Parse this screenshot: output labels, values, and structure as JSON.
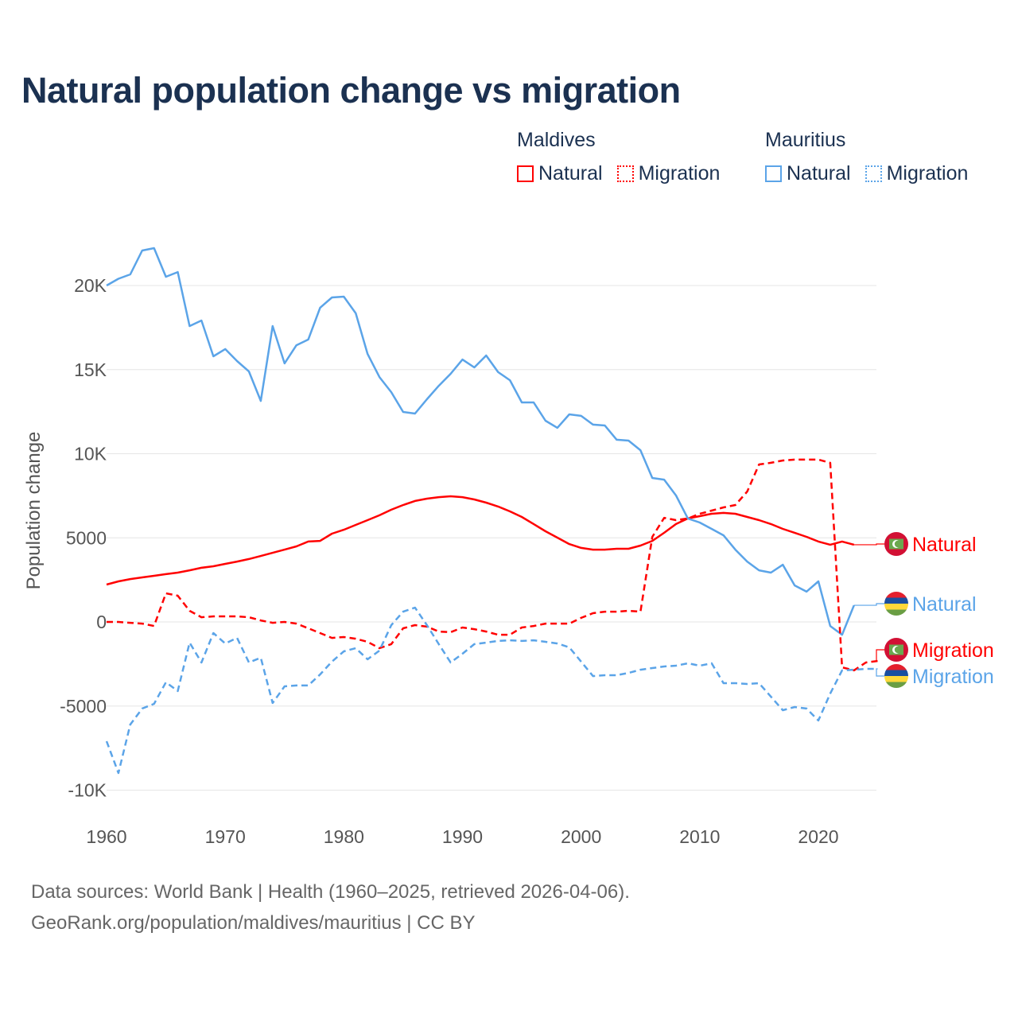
{
  "title": "Natural population change vs migration",
  "legend": {
    "groups": [
      {
        "name": "Maldives",
        "items": [
          {
            "label": "Natural",
            "style": "solid",
            "color": "#ff0000"
          },
          {
            "label": "Migration",
            "style": "dotted",
            "color": "#ff0000"
          }
        ]
      },
      {
        "name": "Mauritius",
        "items": [
          {
            "label": "Natural",
            "style": "solid",
            "color": "#5ba4e8"
          },
          {
            "label": "Migration",
            "style": "dotted",
            "color": "#5ba4e8"
          }
        ]
      }
    ]
  },
  "footer": {
    "line1": "Data sources: World Bank | Health (1960–2025, retrieved 2026-04-06).",
    "line2": "GeoRank.org/population/maldives/mauritius | CC BY"
  },
  "chart_data": {
    "type": "line",
    "title": "Natural population change vs migration",
    "xlabel": "",
    "ylabel": "Population change",
    "xlim": [
      1960,
      2025
    ],
    "ylim": [
      -10000,
      22500
    ],
    "grid": true,
    "legend_position": "top-right",
    "x_ticks": [
      1960,
      1970,
      1980,
      1990,
      2000,
      2010,
      2020
    ],
    "y_ticks": [
      {
        "value": 20000,
        "label": "20K"
      },
      {
        "value": 15000,
        "label": "15K"
      },
      {
        "value": 10000,
        "label": "10K"
      },
      {
        "value": 5000,
        "label": "5000"
      },
      {
        "value": 0,
        "label": "0"
      },
      {
        "value": -5000,
        "label": "-5000"
      },
      {
        "value": -10000,
        "label": "-10K"
      }
    ],
    "series": [
      {
        "name": "Maldives Natural",
        "end_label": "Natural",
        "country": "maldives",
        "color": "#ff0000",
        "dashed": false,
        "start": 1960,
        "values": [
          2220,
          2410,
          2550,
          2650,
          2740,
          2840,
          2930,
          3070,
          3220,
          3310,
          3450,
          3590,
          3740,
          3920,
          4110,
          4300,
          4490,
          4780,
          4820,
          5250,
          5480,
          5770,
          6050,
          6340,
          6670,
          6950,
          7190,
          7330,
          7420,
          7470,
          7420,
          7280,
          7090,
          6860,
          6570,
          6240,
          5820,
          5390,
          5010,
          4630,
          4400,
          4300,
          4300,
          4350,
          4350,
          4540,
          4820,
          5300,
          5820,
          6150,
          6290,
          6430,
          6480,
          6430,
          6240,
          6050,
          5820,
          5530,
          5300,
          5060,
          4780,
          4590,
          4780,
          4590
        ]
      },
      {
        "name": "Mauritius Natural",
        "end_label": "Natural",
        "country": "mauritius",
        "color": "#5ba4e8",
        "dashed": false,
        "start": 1960,
        "values": [
          20000,
          20400,
          20660,
          22080,
          22220,
          20520,
          20800,
          17590,
          17920,
          15790,
          16220,
          15510,
          14890,
          13140,
          17590,
          15370,
          16450,
          16790,
          18680,
          19290,
          19340,
          18350,
          15930,
          14560,
          13660,
          12480,
          12390,
          13240,
          14040,
          14750,
          15600,
          15130,
          15840,
          14850,
          14370,
          13050,
          13050,
          11960,
          11540,
          12340,
          12250,
          11730,
          11680,
          10830,
          10780,
          10210,
          8560,
          8460,
          7520,
          6150,
          5910,
          5530,
          5150,
          4300,
          3590,
          3070,
          2930,
          3400,
          2170,
          1800,
          2410,
          -240,
          -760,
          990
        ]
      },
      {
        "name": "Maldives Migration",
        "end_label": "Migration",
        "country": "maldives",
        "color": "#ff0000",
        "dashed": true,
        "start": 1960,
        "values": [
          0,
          0,
          -50,
          -100,
          -240,
          1700,
          1560,
          660,
          280,
          330,
          330,
          330,
          280,
          90,
          -50,
          0,
          -100,
          -380,
          -660,
          -950,
          -900,
          -1000,
          -1180,
          -1560,
          -1320,
          -380,
          -190,
          -280,
          -570,
          -610,
          -330,
          -430,
          -570,
          -760,
          -760,
          -330,
          -240,
          -100,
          -100,
          -100,
          240,
          520,
          610,
          610,
          660,
          610,
          5060,
          6190,
          6050,
          6150,
          6430,
          6620,
          6810,
          6950,
          7750,
          9360,
          9460,
          9600,
          9650,
          9650,
          9650,
          9460,
          -2700,
          -2880,
          -2410,
          -2320
        ]
      },
      {
        "name": "Mauritius Migration",
        "end_label": "Migration",
        "country": "mauritius",
        "color": "#5ba4e8",
        "dashed": true,
        "start": 1960,
        "values": [
          -7090,
          -8980,
          -6100,
          -5150,
          -4870,
          -3590,
          -4110,
          -1230,
          -2410,
          -660,
          -1280,
          -950,
          -2410,
          -2130,
          -4820,
          -3830,
          -3780,
          -3780,
          -3120,
          -2360,
          -1750,
          -1560,
          -2220,
          -1700,
          -190,
          610,
          850,
          -190,
          -1320,
          -2410,
          -1890,
          -1320,
          -1230,
          -1130,
          -1090,
          -1130,
          -1090,
          -1180,
          -1280,
          -1510,
          -2360,
          -3220,
          -3170,
          -3170,
          -3030,
          -2840,
          -2740,
          -2650,
          -2600,
          -2460,
          -2600,
          -2460,
          -3640,
          -3640,
          -3690,
          -3640,
          -4440,
          -5250,
          -5060,
          -5150,
          -5860,
          -4260,
          -2880,
          -2840,
          -2790,
          -2790
        ]
      }
    ]
  }
}
